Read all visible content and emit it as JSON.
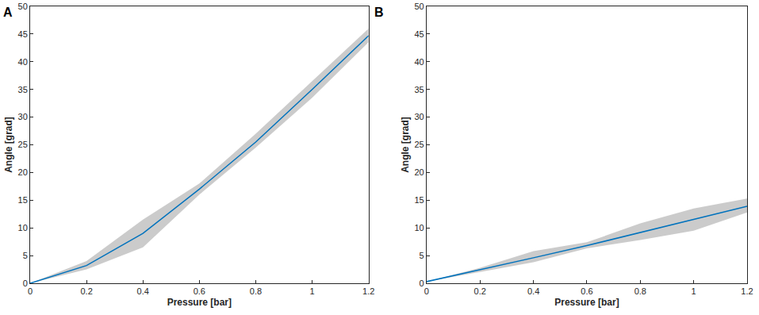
{
  "chart_data": [
    {
      "type": "line",
      "title": "A",
      "x_label": "Pressure [bar]",
      "y_label": "Angle [grad]",
      "x": [
        0,
        0.2,
        0.4,
        0.6,
        0.8,
        1.0,
        1.2
      ],
      "series": [
        {
          "color": "#0072bd",
          "values": [
            0,
            3.2,
            9,
            17,
            25.5,
            35,
            44.7
          ],
          "band_lower": [
            0,
            2.5,
            6.5,
            16,
            24.5,
            33.5,
            43.5
          ],
          "band_upper": [
            0,
            4,
            11.5,
            18,
            27,
            36.5,
            46
          ]
        }
      ],
      "xlim": [
        0,
        1.2
      ],
      "xticks": [
        0,
        0.2,
        0.4,
        0.6,
        0.8,
        1,
        1.2
      ],
      "ylim": [
        0,
        50
      ],
      "yticks": [
        0,
        5,
        10,
        15,
        20,
        25,
        30,
        35,
        40,
        45,
        50
      ],
      "grid": false
    },
    {
      "type": "line",
      "title": "B",
      "x_label": "Pressure [bar]",
      "y_label": "Angle [grad]",
      "x": [
        0,
        0.2,
        0.4,
        0.6,
        0.8,
        1.0,
        1.2
      ],
      "series": [
        {
          "color": "#0072bd",
          "values": [
            0.3,
            2.4,
            4.6,
            6.8,
            9.2,
            11.5,
            13.9
          ],
          "band_lower": [
            0.3,
            2,
            3.8,
            6.3,
            7.8,
            9.5,
            12.8
          ],
          "band_upper": [
            0.3,
            2.8,
            5.8,
            7.4,
            10.8,
            13.5,
            15.3
          ]
        }
      ],
      "xlim": [
        0,
        1.2
      ],
      "xticks": [
        0,
        0.2,
        0.4,
        0.6,
        0.8,
        1,
        1.2
      ],
      "ylim": [
        0,
        50
      ],
      "yticks": [
        0,
        5,
        10,
        15,
        20,
        25,
        30,
        35,
        40,
        45,
        50
      ],
      "grid": false
    }
  ]
}
